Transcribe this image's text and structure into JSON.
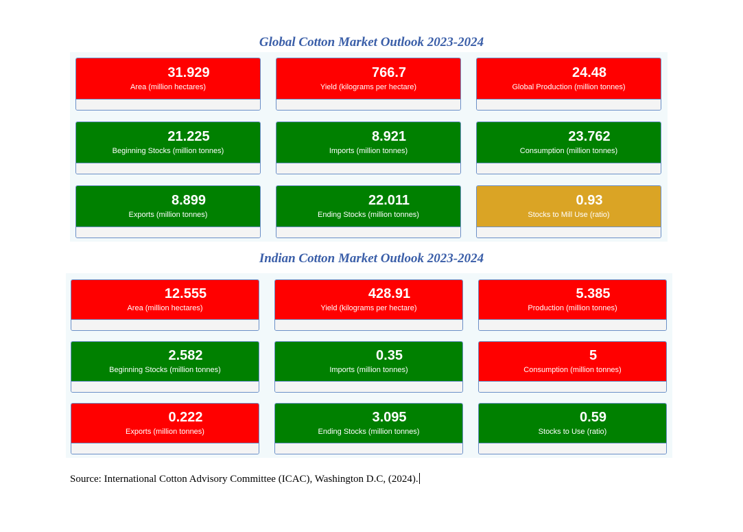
{
  "colors": {
    "red": "#ff0000",
    "green": "#008000",
    "gold": "#daa425",
    "title": "#3a5ea8",
    "card_border": "#6a8fc7",
    "card_footer": "#f4f4f4",
    "panel_bg": "#f2f9fb"
  },
  "global": {
    "title": "Global Cotton Market Outlook 2023-2024",
    "cards": [
      {
        "value": "31.929",
        "label": "Area (million hectares)",
        "color": "red"
      },
      {
        "value": "766.7",
        "label": "Yield (kilograms per hectare)",
        "color": "red"
      },
      {
        "value": "24.48",
        "label": "Global Production (million tonnes)",
        "color": "red"
      },
      {
        "value": "21.225",
        "label": "Beginning Stocks (million tonnes)",
        "color": "green"
      },
      {
        "value": "8.921",
        "label": "Imports (million tonnes)",
        "color": "green"
      },
      {
        "value": "23.762",
        "label": "Consumption (million tonnes)",
        "color": "green"
      },
      {
        "value": "8.899",
        "label": "Exports (million tonnes)",
        "color": "green"
      },
      {
        "value": "22.011",
        "label": "Ending Stocks (million tonnes)",
        "color": "green"
      },
      {
        "value": "0.93",
        "label": "Stocks to Mill Use (ratio)",
        "color": "gold"
      }
    ]
  },
  "indian": {
    "title": "Indian Cotton Market Outlook 2023-2024",
    "cards": [
      {
        "value": "12.555",
        "label": "Area (million hectares)",
        "color": "red"
      },
      {
        "value": "428.91",
        "label": "Yield (kilograms per hectare)",
        "color": "red"
      },
      {
        "value": "5.385",
        "label": "Production (million tonnes)",
        "color": "red"
      },
      {
        "value": "2.582",
        "label": "Beginning Stocks (million tonnes)",
        "color": "green"
      },
      {
        "value": "0.35",
        "label": "Imports (million tonnes)",
        "color": "green"
      },
      {
        "value": "5",
        "label": "Consumption (million tonnes)",
        "color": "red"
      },
      {
        "value": "0.222",
        "label": "Exports (million tonnes)",
        "color": "red"
      },
      {
        "value": "3.095",
        "label": "Ending Stocks (million tonnes)",
        "color": "green"
      },
      {
        "value": "0.59",
        "label": "Stocks to Use (ratio)",
        "color": "green"
      }
    ]
  },
  "source": "Source: International Cotton Advisory Committee (ICAC), Washington D.C, (2024)."
}
